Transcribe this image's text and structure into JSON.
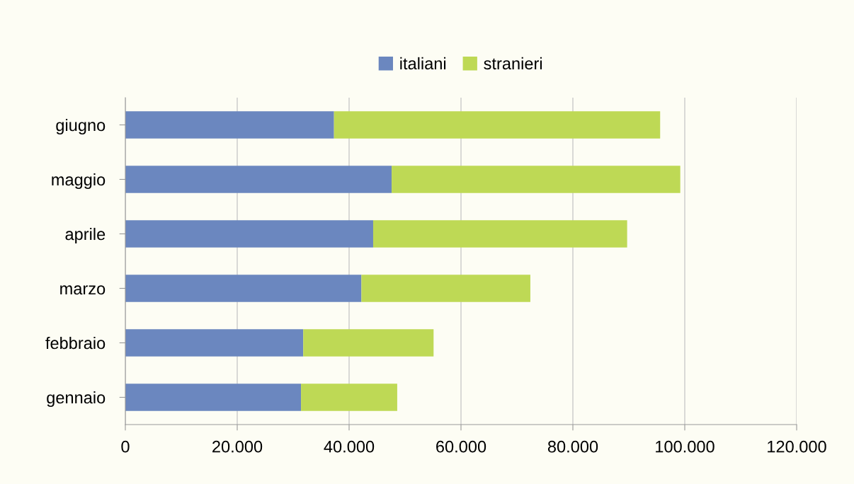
{
  "chart_data": {
    "type": "bar",
    "orientation": "horizontal",
    "stacked": true,
    "categories": [
      "giugno",
      "maggio",
      "aprile",
      "marzo",
      "febbraio",
      "gennaio"
    ],
    "series": [
      {
        "name": "italiani",
        "color": "#6b87bf",
        "values": [
          37300,
          47600,
          44300,
          42200,
          31800,
          31400
        ]
      },
      {
        "name": "stranieri",
        "color": "#bed955",
        "values": [
          58300,
          51600,
          45400,
          30200,
          23300,
          17200
        ]
      }
    ],
    "xlim": [
      0,
      120000
    ],
    "xticks": [
      0,
      {
        "value": 20000,
        "label": "20.000"
      },
      {
        "value": 40000,
        "label": "40.000"
      },
      {
        "value": 60000,
        "label": "60.000"
      },
      {
        "value": 80000,
        "label": "80.000"
      },
      {
        "value": 100000,
        "label": "100.000"
      },
      {
        "value": 120000,
        "label": "120.000"
      }
    ],
    "grid": "x",
    "legend": "top"
  }
}
